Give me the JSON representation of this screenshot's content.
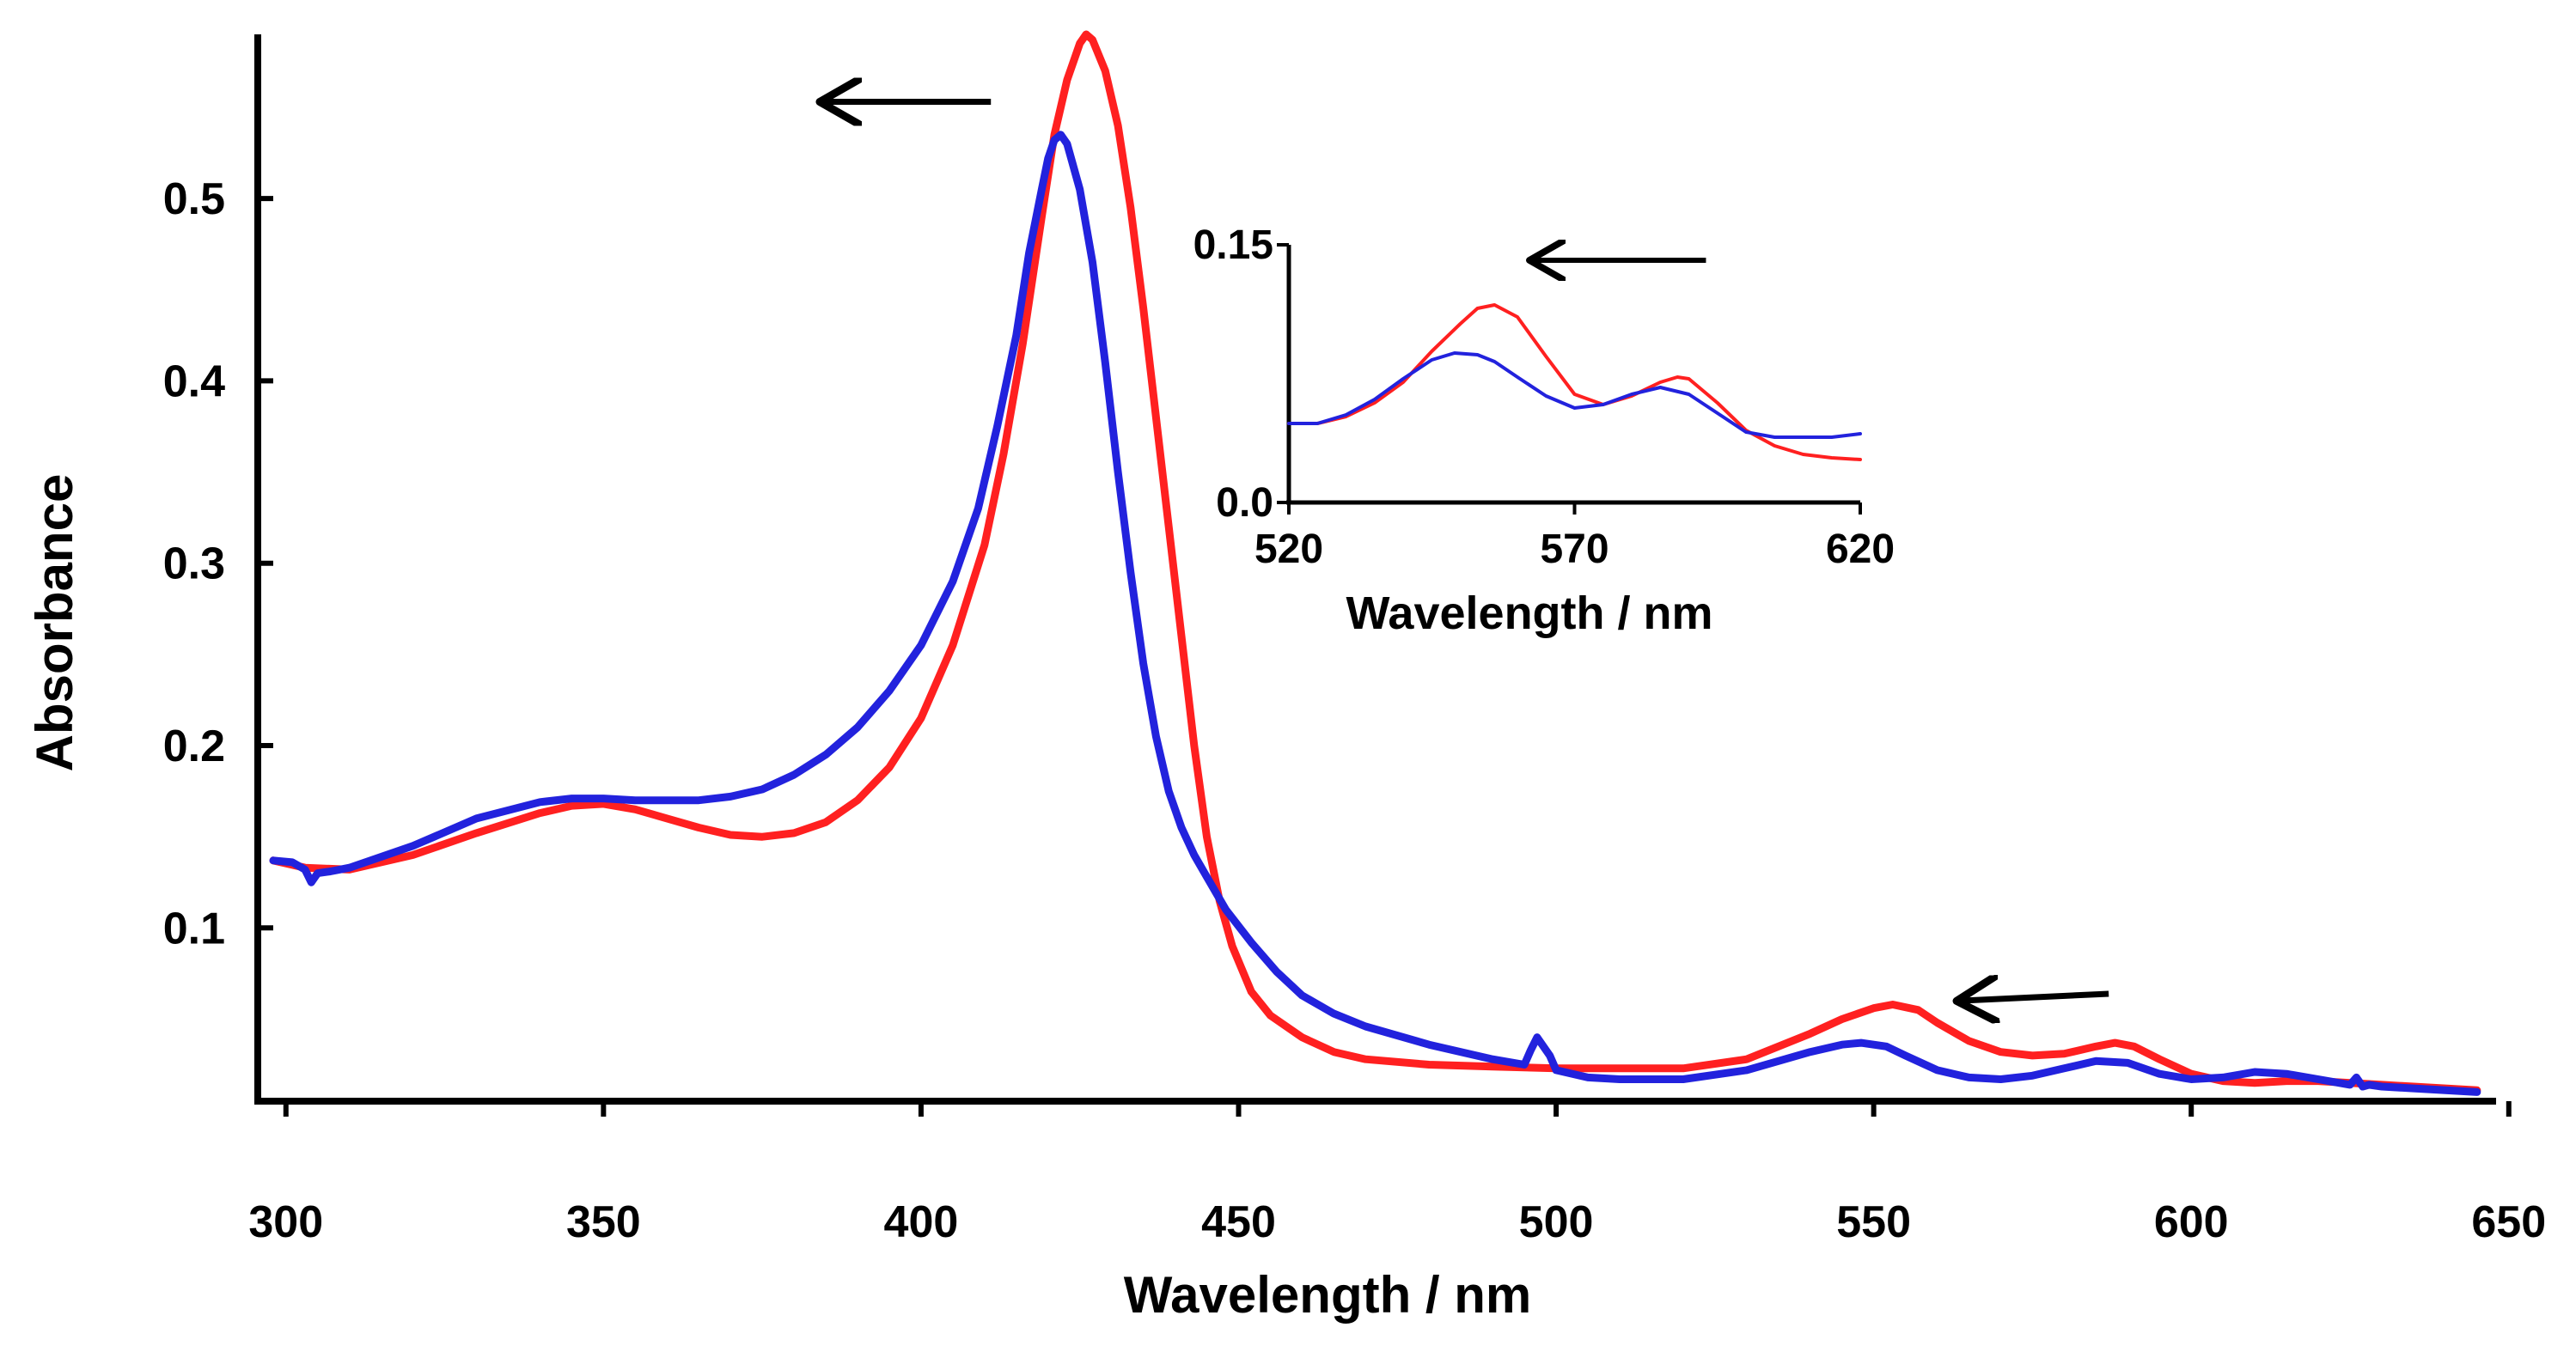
{
  "chart_data": [
    {
      "id": "main",
      "type": "line",
      "title": "",
      "xlabel": "Wavelength / nm",
      "ylabel": "Absorbance",
      "xlim": [
        298,
        648
      ],
      "ylim": [
        0.005,
        0.59
      ],
      "xticks": [
        300,
        350,
        400,
        450,
        500,
        550,
        600,
        650
      ],
      "yticks": [
        0.1,
        0.2,
        0.3,
        0.4,
        0.5
      ],
      "xtick_labels": [
        "300",
        "350",
        "400",
        "450",
        "500",
        "550",
        "600",
        "650"
      ],
      "ytick_labels": [
        "0.1",
        "0.2",
        "0.3",
        "0.4",
        "0.5"
      ],
      "grid": false,
      "series": [
        {
          "name": "red",
          "color": "#ff2020",
          "x": [
            298,
            303,
            310,
            320,
            330,
            340,
            345,
            350,
            355,
            360,
            365,
            370,
            375,
            380,
            385,
            390,
            395,
            400,
            405,
            410,
            413,
            416,
            419,
            421,
            423,
            425,
            426,
            427,
            429,
            431,
            433,
            435,
            437,
            439,
            441,
            443,
            445,
            447,
            449,
            452,
            455,
            460,
            465,
            470,
            480,
            490,
            500,
            510,
            520,
            530,
            540,
            545,
            550,
            553,
            557,
            560,
            565,
            570,
            575,
            580,
            585,
            588,
            591,
            595,
            600,
            605,
            610,
            615,
            620,
            625,
            630,
            635,
            640,
            645
          ],
          "y": [
            0.137,
            0.133,
            0.132,
            0.14,
            0.152,
            0.163,
            0.167,
            0.168,
            0.165,
            0.16,
            0.155,
            0.151,
            0.15,
            0.152,
            0.158,
            0.17,
            0.188,
            0.215,
            0.255,
            0.31,
            0.36,
            0.42,
            0.49,
            0.535,
            0.565,
            0.585,
            0.59,
            0.587,
            0.57,
            0.54,
            0.495,
            0.44,
            0.38,
            0.32,
            0.26,
            0.2,
            0.15,
            0.115,
            0.09,
            0.065,
            0.052,
            0.04,
            0.032,
            0.028,
            0.025,
            0.024,
            0.023,
            0.023,
            0.023,
            0.028,
            0.042,
            0.05,
            0.056,
            0.058,
            0.055,
            0.048,
            0.038,
            0.032,
            0.03,
            0.031,
            0.035,
            0.037,
            0.035,
            0.028,
            0.02,
            0.016,
            0.015,
            0.016,
            0.016,
            0.015,
            0.014,
            0.013,
            0.012,
            0.011
          ]
        },
        {
          "name": "blue",
          "color": "#2222dd",
          "x": [
            298,
            301,
            303,
            304,
            305,
            307,
            310,
            320,
            330,
            340,
            345,
            350,
            355,
            360,
            365,
            370,
            375,
            380,
            385,
            390,
            395,
            400,
            405,
            409,
            412,
            415,
            417,
            419,
            420,
            421,
            422,
            423,
            425,
            427,
            429,
            431,
            433,
            435,
            437,
            439,
            441,
            443,
            445,
            448,
            452,
            456,
            460,
            465,
            470,
            480,
            490,
            495,
            496,
            497,
            499,
            500,
            505,
            510,
            520,
            530,
            540,
            545,
            548,
            552,
            555,
            560,
            565,
            570,
            575,
            580,
            585,
            590,
            595,
            600,
            605,
            610,
            615,
            620,
            625,
            626,
            627,
            628,
            630,
            635,
            640,
            645
          ],
          "y": [
            0.137,
            0.136,
            0.132,
            0.125,
            0.13,
            0.131,
            0.133,
            0.145,
            0.16,
            0.169,
            0.171,
            0.171,
            0.17,
            0.17,
            0.17,
            0.172,
            0.176,
            0.184,
            0.195,
            0.21,
            0.23,
            0.255,
            0.29,
            0.33,
            0.375,
            0.425,
            0.47,
            0.505,
            0.522,
            0.532,
            0.535,
            0.53,
            0.505,
            0.465,
            0.41,
            0.35,
            0.295,
            0.245,
            0.205,
            0.175,
            0.155,
            0.14,
            0.128,
            0.11,
            0.092,
            0.076,
            0.063,
            0.053,
            0.046,
            0.036,
            0.028,
            0.025,
            0.033,
            0.04,
            0.03,
            0.022,
            0.018,
            0.017,
            0.017,
            0.022,
            0.032,
            0.036,
            0.037,
            0.035,
            0.03,
            0.022,
            0.018,
            0.017,
            0.019,
            0.023,
            0.027,
            0.026,
            0.02,
            0.017,
            0.018,
            0.021,
            0.02,
            0.017,
            0.014,
            0.018,
            0.013,
            0.014,
            0.013,
            0.012,
            0.011,
            0.01
          ]
        }
      ],
      "annotations": [
        {
          "type": "arrow",
          "direction": "left",
          "x_from": 411,
          "x_to": 385,
          "y": 0.553
        },
        {
          "type": "arrow",
          "direction": "left",
          "x_from": 587,
          "x_to": 564,
          "y": 0.062
        }
      ]
    },
    {
      "id": "inset",
      "type": "line",
      "title": "",
      "xlabel": "Wavelength / nm",
      "ylabel": "",
      "xlim": [
        520,
        620
      ],
      "ylim": [
        0.0,
        0.15
      ],
      "xticks": [
        520,
        570,
        620
      ],
      "yticks": [
        0.0,
        0.15
      ],
      "xtick_labels": [
        "520",
        "570",
        "620"
      ],
      "ytick_labels": [
        "0.0",
        "0.15"
      ],
      "grid": false,
      "series": [
        {
          "name": "red",
          "color": "#ff2020",
          "x": [
            520,
            525,
            530,
            535,
            540,
            545,
            550,
            553,
            556,
            560,
            565,
            570,
            575,
            580,
            585,
            588,
            590,
            595,
            600,
            605,
            610,
            615,
            620
          ],
          "y": [
            0.046,
            0.046,
            0.05,
            0.058,
            0.07,
            0.088,
            0.104,
            0.113,
            0.115,
            0.108,
            0.085,
            0.063,
            0.057,
            0.062,
            0.07,
            0.073,
            0.072,
            0.058,
            0.042,
            0.033,
            0.028,
            0.026,
            0.025
          ]
        },
        {
          "name": "blue",
          "color": "#2222dd",
          "x": [
            520,
            525,
            530,
            535,
            540,
            545,
            549,
            553,
            556,
            560,
            565,
            570,
            575,
            580,
            585,
            590,
            595,
            600,
            605,
            610,
            615,
            620
          ],
          "y": [
            0.046,
            0.046,
            0.051,
            0.06,
            0.072,
            0.083,
            0.087,
            0.086,
            0.082,
            0.073,
            0.062,
            0.055,
            0.057,
            0.063,
            0.067,
            0.063,
            0.052,
            0.041,
            0.038,
            0.038,
            0.038,
            0.04
          ]
        }
      ],
      "annotations": [
        {
          "type": "arrow",
          "direction": "left",
          "x_from": 593,
          "x_to": 563,
          "y": 0.141
        }
      ]
    }
  ]
}
